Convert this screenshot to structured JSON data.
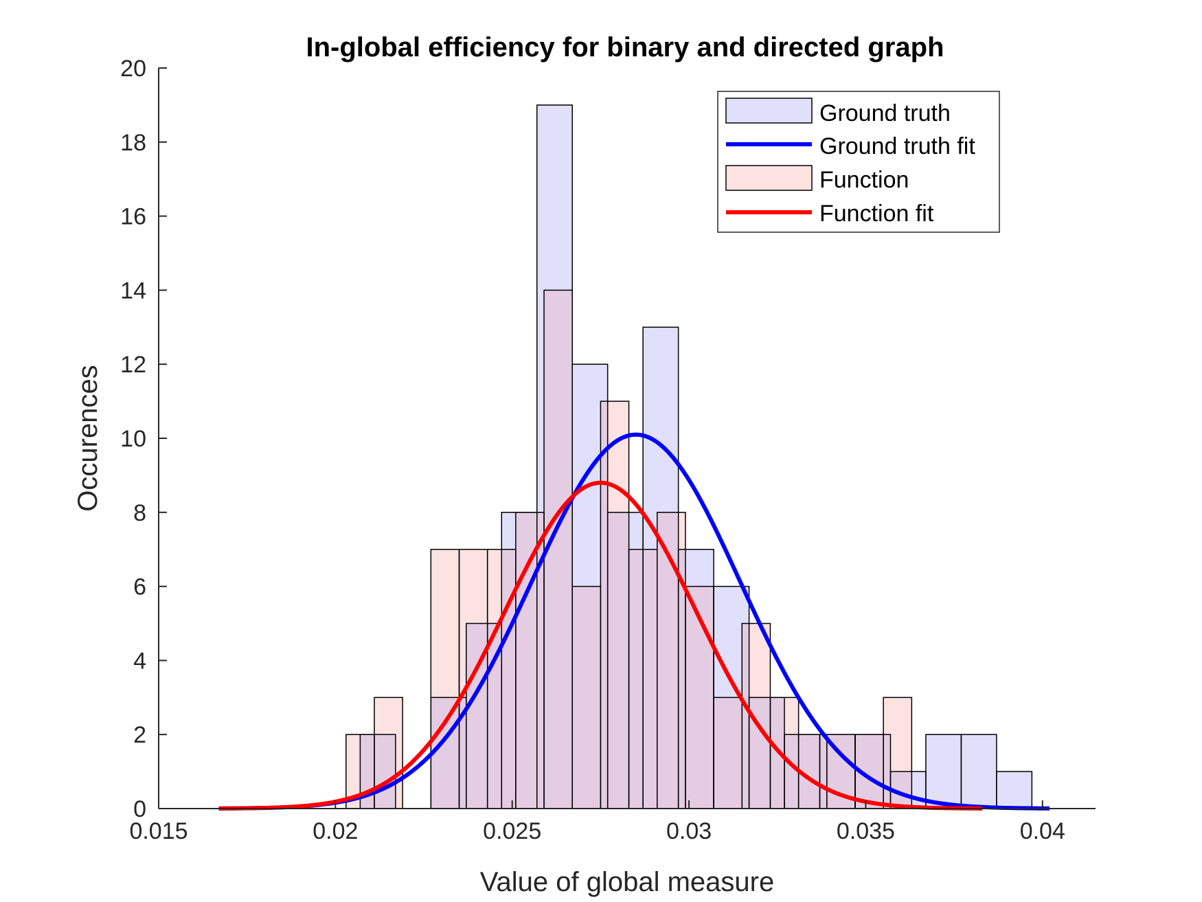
{
  "chart_data": {
    "type": "bar",
    "title": "In-global efficiency for binary and directed graph",
    "xlabel": "Value of global measure",
    "ylabel": "Occurences",
    "xlim": [
      0.015,
      0.0415
    ],
    "ylim": [
      0,
      20
    ],
    "xticks": [
      0.015,
      0.02,
      0.025,
      0.03,
      0.035,
      0.04
    ],
    "xtick_labels": [
      "0.015",
      "0.02",
      "0.025",
      "0.03",
      "0.035",
      "0.04"
    ],
    "yticks": [
      0,
      2,
      4,
      6,
      8,
      10,
      12,
      14,
      16,
      18,
      20
    ],
    "ytick_labels": [
      "0",
      "2",
      "4",
      "6",
      "8",
      "10",
      "12",
      "14",
      "16",
      "18",
      "20"
    ],
    "grid": false,
    "legend_position": "top-right",
    "series": [
      {
        "name": "Ground truth",
        "kind": "histogram",
        "color": "#e0e0fa",
        "bin_width": 0.001,
        "bin_starts": [
          0.0207,
          0.0227,
          0.0237,
          0.0247,
          0.0257,
          0.0267,
          0.0277,
          0.0287,
          0.0297,
          0.0307,
          0.0317,
          0.0327,
          0.0337,
          0.0347,
          0.0357,
          0.0367,
          0.0377,
          0.0387
        ],
        "values": [
          2,
          3,
          5,
          8,
          19,
          12,
          8,
          13,
          7,
          6,
          3,
          2,
          2,
          2,
          1,
          2,
          2,
          1
        ]
      },
      {
        "name": "Ground truth fit",
        "kind": "normal_fit",
        "color": "#0000ff",
        "peak": 10.1,
        "mean": 0.0285,
        "x_range": [
          0.0167,
          0.0402
        ]
      },
      {
        "name": "Function",
        "kind": "histogram",
        "color": "#fde2e2",
        "bin_width": 0.0008,
        "bin_starts": [
          0.0203,
          0.0211,
          0.0227,
          0.0235,
          0.0243,
          0.0251,
          0.0259,
          0.0267,
          0.0275,
          0.0283,
          0.0291,
          0.0299,
          0.0307,
          0.0315,
          0.0323,
          0.0331,
          0.0339,
          0.0347,
          0.0355
        ],
        "values": [
          2,
          3,
          7,
          7,
          7,
          8,
          14,
          6,
          11,
          7,
          8,
          6,
          3,
          5,
          3,
          2,
          2,
          2,
          3
        ]
      },
      {
        "name": "Function fit",
        "kind": "normal_fit",
        "color": "#ff0000",
        "peak": 8.8,
        "mean": 0.0275,
        "x_range": [
          0.0167,
          0.0383
        ]
      }
    ],
    "overlap_color": "#e4cde3"
  }
}
